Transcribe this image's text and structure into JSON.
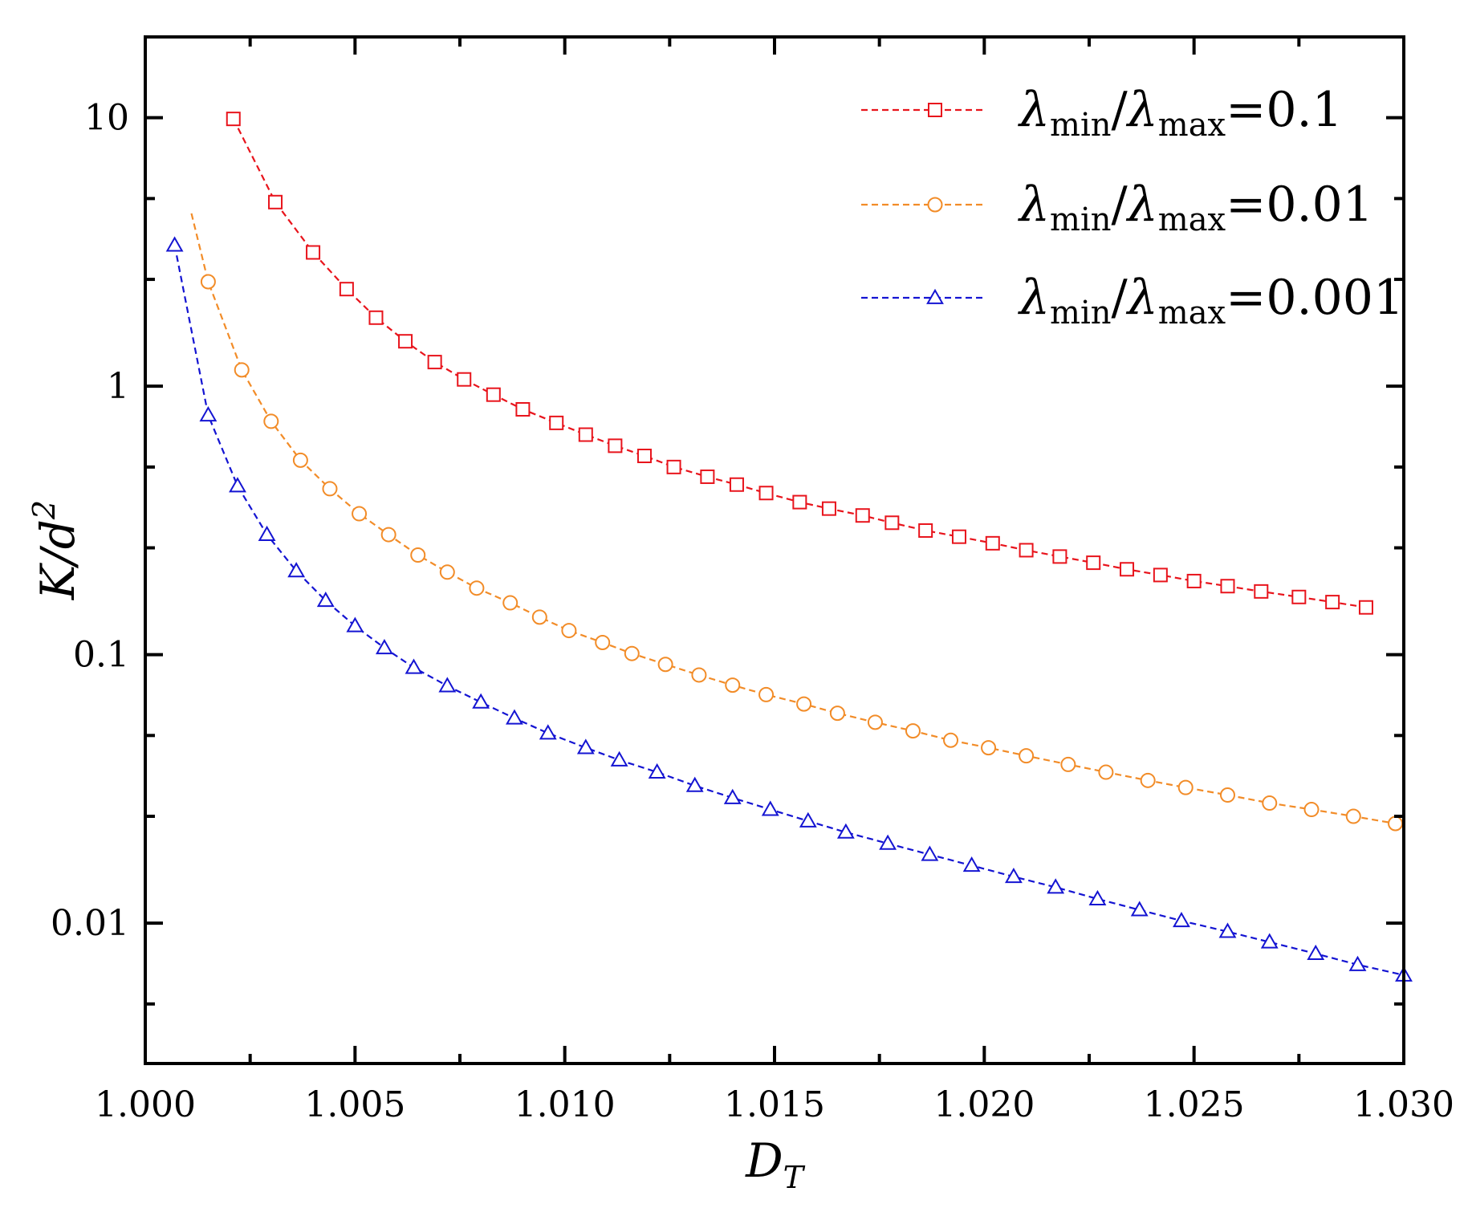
{
  "chart_data": {
    "type": "scatter",
    "title": "",
    "xlabel": "D",
    "xlabel_sub": "T",
    "ylabel": "K/d",
    "ylabel_sup": "2",
    "xscale": "linear",
    "yscale": "log",
    "xlim": [
      1.0,
      1.03
    ],
    "ylim": [
      0.003,
      20
    ],
    "xticks": [
      1.0,
      1.005,
      1.01,
      1.015,
      1.02,
      1.025,
      1.03
    ],
    "xtick_labels": [
      "1.000",
      "1.005",
      "1.010",
      "1.015",
      "1.020",
      "1.025",
      "1.030"
    ],
    "yticks": [
      0.01,
      0.1,
      1,
      10
    ],
    "ytick_labels": [
      "0.01",
      "0.1",
      "1",
      "10"
    ],
    "grid": false,
    "legend_position": "top-right",
    "series": [
      {
        "name": "λmin/λmax=0.1",
        "label_parts": {
          "sym": "λ",
          "sub1": "min",
          "slash": "/",
          "sub2": "max",
          "value": "=0.1"
        },
        "color": "#e8141c",
        "marker": "square",
        "line": "dashed",
        "points": [
          [
            1.0021,
            9.9
          ],
          [
            1.0031,
            4.85
          ],
          [
            1.004,
            3.15
          ],
          [
            1.0048,
            2.3
          ],
          [
            1.0055,
            1.8
          ],
          [
            1.0062,
            1.47
          ],
          [
            1.0069,
            1.23
          ],
          [
            1.0076,
            1.06
          ],
          [
            1.0083,
            0.93
          ],
          [
            1.009,
            0.82
          ],
          [
            1.0098,
            0.73
          ],
          [
            1.0105,
            0.66
          ],
          [
            1.0112,
            0.6
          ],
          [
            1.0119,
            0.55
          ],
          [
            1.0126,
            0.5
          ],
          [
            1.0134,
            0.46
          ],
          [
            1.0141,
            0.43
          ],
          [
            1.0148,
            0.4
          ],
          [
            1.0156,
            0.37
          ],
          [
            1.0163,
            0.35
          ],
          [
            1.0171,
            0.33
          ],
          [
            1.0178,
            0.31
          ],
          [
            1.0186,
            0.29
          ],
          [
            1.0194,
            0.275
          ],
          [
            1.0202,
            0.26
          ],
          [
            1.021,
            0.245
          ],
          [
            1.0218,
            0.232
          ],
          [
            1.0226,
            0.22
          ],
          [
            1.0234,
            0.208
          ],
          [
            1.0242,
            0.198
          ],
          [
            1.025,
            0.188
          ],
          [
            1.0258,
            0.18
          ],
          [
            1.0266,
            0.172
          ],
          [
            1.0275,
            0.164
          ],
          [
            1.0283,
            0.157
          ],
          [
            1.0291,
            0.15
          ]
        ]
      },
      {
        "name": "λmin/λmax=0.01",
        "label_parts": {
          "sym": "λ",
          "sub1": "min",
          "slash": "/",
          "sub2": "max",
          "value": "=0.01"
        },
        "color": "#f28c28",
        "marker": "circle",
        "line": "dashed",
        "line_start": [
          1.0011,
          4.4
        ],
        "points": [
          [
            1.0015,
            2.45
          ],
          [
            1.0023,
            1.15
          ],
          [
            1.003,
            0.74
          ],
          [
            1.0037,
            0.53
          ],
          [
            1.0044,
            0.415
          ],
          [
            1.0051,
            0.335
          ],
          [
            1.0058,
            0.28
          ],
          [
            1.0065,
            0.235
          ],
          [
            1.0072,
            0.203
          ],
          [
            1.0079,
            0.177
          ],
          [
            1.0087,
            0.156
          ],
          [
            1.0094,
            0.138
          ],
          [
            1.0101,
            0.123
          ],
          [
            1.0109,
            0.111
          ],
          [
            1.0116,
            0.101
          ],
          [
            1.0124,
            0.092
          ],
          [
            1.0132,
            0.084
          ],
          [
            1.014,
            0.077
          ],
          [
            1.0148,
            0.071
          ],
          [
            1.0157,
            0.0655
          ],
          [
            1.0165,
            0.0605
          ],
          [
            1.0174,
            0.056
          ],
          [
            1.0183,
            0.052
          ],
          [
            1.0192,
            0.048
          ],
          [
            1.0201,
            0.045
          ],
          [
            1.021,
            0.042
          ],
          [
            1.022,
            0.039
          ],
          [
            1.0229,
            0.0365
          ],
          [
            1.0239,
            0.034
          ],
          [
            1.0248,
            0.032
          ],
          [
            1.0258,
            0.03
          ],
          [
            1.0268,
            0.028
          ],
          [
            1.0278,
            0.0265
          ],
          [
            1.0288,
            0.025
          ],
          [
            1.0298,
            0.0235
          ]
        ]
      },
      {
        "name": "λmin/λmax=0.001",
        "label_parts": {
          "sym": "λ",
          "sub1": "min",
          "slash": "/",
          "sub2": "max",
          "value": "=0.001"
        },
        "color": "#1414d2",
        "marker": "triangle",
        "line": "dashed",
        "points": [
          [
            1.0007,
            3.35
          ],
          [
            1.0015,
            0.78
          ],
          [
            1.0022,
            0.425
          ],
          [
            1.0029,
            0.28
          ],
          [
            1.0036,
            0.205
          ],
          [
            1.0043,
            0.159
          ],
          [
            1.005,
            0.128
          ],
          [
            1.0057,
            0.106
          ],
          [
            1.0064,
            0.0895
          ],
          [
            1.0072,
            0.0765
          ],
          [
            1.008,
            0.0665
          ],
          [
            1.0088,
            0.058
          ],
          [
            1.0096,
            0.051
          ],
          [
            1.0105,
            0.045
          ],
          [
            1.0113,
            0.0405
          ],
          [
            1.0122,
            0.0365
          ],
          [
            1.0131,
            0.0325
          ],
          [
            1.014,
            0.0293
          ],
          [
            1.0149,
            0.0265
          ],
          [
            1.0158,
            0.024
          ],
          [
            1.0167,
            0.0218
          ],
          [
            1.0177,
            0.0198
          ],
          [
            1.0187,
            0.018
          ],
          [
            1.0197,
            0.0164
          ],
          [
            1.0207,
            0.0149
          ],
          [
            1.0217,
            0.0136
          ],
          [
            1.0227,
            0.0123
          ],
          [
            1.0237,
            0.0112
          ],
          [
            1.0247,
            0.0102
          ],
          [
            1.0258,
            0.0093
          ],
          [
            1.0268,
            0.0085
          ],
          [
            1.0279,
            0.0077
          ],
          [
            1.0289,
            0.007
          ],
          [
            1.03,
            0.0064
          ]
        ]
      }
    ]
  }
}
